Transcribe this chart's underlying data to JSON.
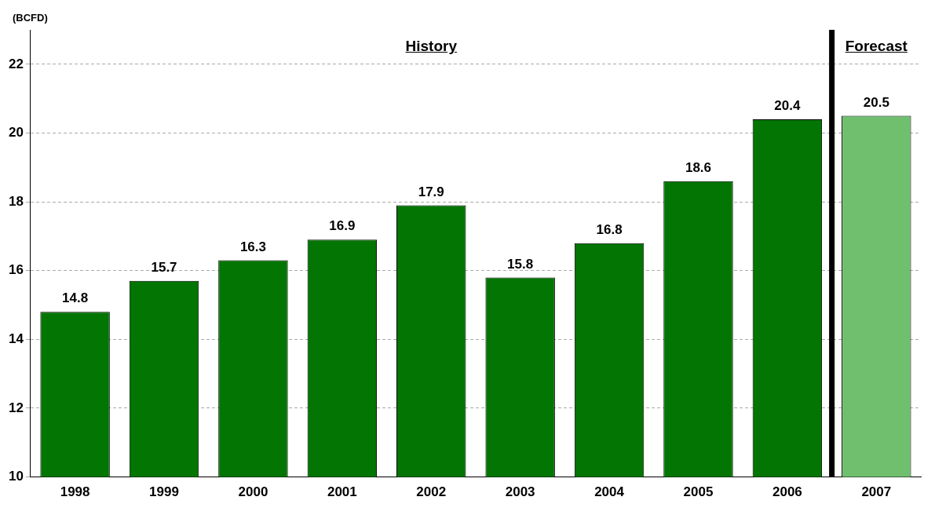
{
  "chart_data": {
    "type": "bar",
    "ylabel": "(BCFD)",
    "categories": [
      "1998",
      "1999",
      "2000",
      "2001",
      "2002",
      "2003",
      "2004",
      "2005",
      "2006",
      "2007"
    ],
    "values": [
      14.8,
      15.7,
      16.3,
      16.9,
      17.9,
      15.8,
      16.8,
      18.6,
      20.4,
      20.5
    ],
    "colors": [
      "#037503",
      "#037503",
      "#037503",
      "#037503",
      "#037503",
      "#037503",
      "#037503",
      "#037503",
      "#037503",
      "#6fbf6f"
    ],
    "ylim": [
      10,
      23
    ],
    "yticks": [
      10,
      12,
      14,
      16,
      18,
      20,
      22
    ],
    "grid": "y",
    "data_labels": true,
    "annotations": [
      "History"
    ],
    "ref_lines": [
      {
        "axis": "x",
        "value": "2007",
        "label": "Forecast",
        "color": "#000000"
      }
    ]
  }
}
